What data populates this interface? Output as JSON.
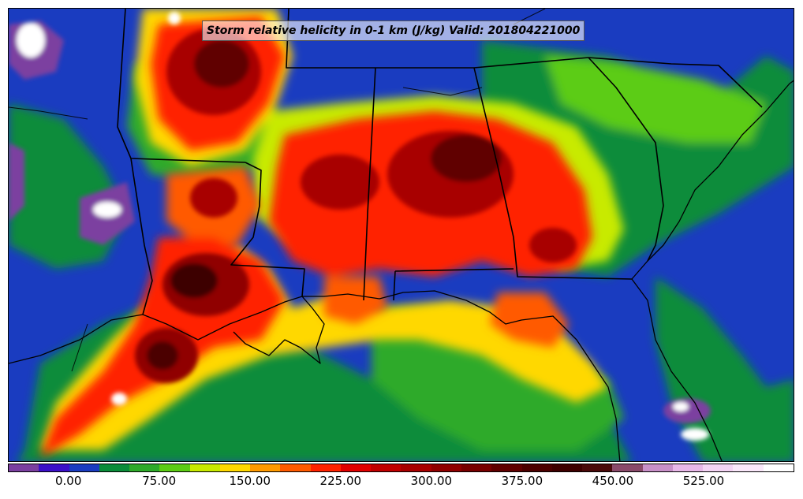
{
  "title": "Storm relative helicity in 0-1 km (J/kg) Valid: 201804221000",
  "colorbar": {
    "colors": [
      "#7b3fa0",
      "#3b10c8",
      "#1a3cc0",
      "#0a8c3a",
      "#2eaa2a",
      "#5ccc14",
      "#c8ea00",
      "#ffd800",
      "#ff9a00",
      "#ff5a00",
      "#ff2200",
      "#e00000",
      "#c00000",
      "#a80000",
      "#900000",
      "#780000",
      "#600000",
      "#4c0000",
      "#3e0000",
      "#4a0a0a",
      "#8a4a6a",
      "#c890c8",
      "#e8b8e8",
      "#f4d4f4",
      "#fae8fa",
      "#ffffff"
    ],
    "tick_labels": [
      "0.00",
      "75.00",
      "150.00",
      "225.00",
      "300.00",
      "375.00",
      "450.00",
      "525.00"
    ],
    "tick_values": [
      0,
      75,
      150,
      225,
      300,
      375,
      450,
      525
    ],
    "min": -50,
    "max": 600
  },
  "map": {
    "region": "southeastern-united-states",
    "background_color": "#1a3cc0",
    "border_color": "#000000"
  }
}
